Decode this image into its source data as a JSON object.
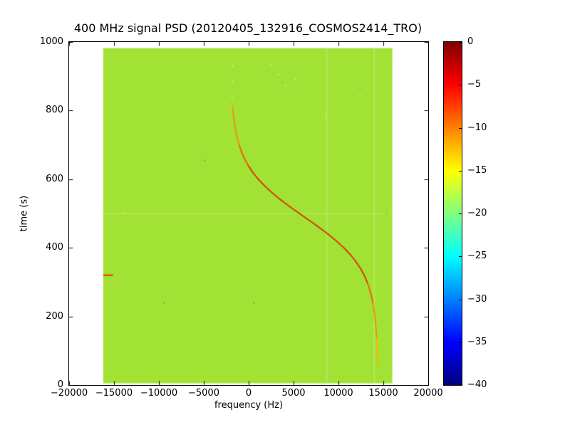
{
  "chart_data": {
    "type": "heatmap",
    "title": "400 MHz signal PSD (20120405_132916_COSMOS2414_TRO)",
    "xlabel": "frequency (Hz)",
    "ylabel": "time (s)",
    "xlim": [
      -20000,
      20000
    ],
    "ylim": [
      0,
      1000
    ],
    "grid": false,
    "x_ticks": {
      "values": [
        -20000,
        -15000,
        -10000,
        -5000,
        0,
        5000,
        10000,
        15000,
        20000
      ],
      "labels": [
        "−20000",
        "−15000",
        "−10000",
        "−5000",
        "0",
        "5000",
        "10000",
        "15000",
        "20000"
      ]
    },
    "y_ticks": {
      "values": [
        0,
        200,
        400,
        600,
        800,
        1000
      ],
      "labels": [
        "0",
        "200",
        "400",
        "600",
        "800",
        "1000"
      ]
    },
    "data_extent": {
      "freq": [
        -16200,
        16000
      ],
      "time": [
        5,
        982
      ]
    },
    "background_level_db": -17,
    "background_color": "#a2e235",
    "colorbar": {
      "range": [
        -40,
        0
      ],
      "colormap": "jet",
      "ticks": [
        {
          "value": 0,
          "label": "0"
        },
        {
          "value": -5,
          "label": "−5"
        },
        {
          "value": -10,
          "label": "−10"
        },
        {
          "value": -15,
          "label": "−15"
        },
        {
          "value": -20,
          "label": "−20"
        },
        {
          "value": -25,
          "label": "−25"
        },
        {
          "value": -30,
          "label": "−30"
        },
        {
          "value": -35,
          "label": "−35"
        },
        {
          "value": -40,
          "label": "−40"
        }
      ],
      "stops": [
        {
          "v": 0.0,
          "color": "#00007f"
        },
        {
          "v": 0.125,
          "color": "#0000ff"
        },
        {
          "v": 0.375,
          "color": "#00ffff"
        },
        {
          "v": 0.625,
          "color": "#ffff00"
        },
        {
          "v": 0.875,
          "color": "#ff0000"
        },
        {
          "v": 1.0,
          "color": "#7f0000"
        }
      ]
    },
    "doppler_track": {
      "description": "satellite Doppler S-curve, strong (near 0 dB) in center, fading toward ends",
      "line_width": 1.7,
      "points": [
        [
          60,
          14340
        ],
        [
          80,
          14330
        ],
        [
          100,
          14310
        ],
        [
          120,
          14280
        ],
        [
          140,
          14250
        ],
        [
          160,
          14200
        ],
        [
          180,
          14140
        ],
        [
          200,
          14060
        ],
        [
          220,
          13960
        ],
        [
          240,
          13840
        ],
        [
          260,
          13670
        ],
        [
          280,
          13460
        ],
        [
          300,
          13200
        ],
        [
          320,
          12870
        ],
        [
          340,
          12450
        ],
        [
          360,
          11940
        ],
        [
          380,
          11330
        ],
        [
          400,
          10600
        ],
        [
          420,
          9770
        ],
        [
          440,
          8840
        ],
        [
          460,
          7820
        ],
        [
          480,
          6750
        ],
        [
          500,
          5650
        ],
        [
          520,
          4580
        ],
        [
          540,
          3560
        ],
        [
          560,
          2630
        ],
        [
          580,
          1800
        ],
        [
          600,
          1070
        ],
        [
          620,
          460
        ],
        [
          640,
          -50
        ],
        [
          660,
          -470
        ],
        [
          680,
          -800
        ],
        [
          700,
          -1060
        ],
        [
          720,
          -1270
        ],
        [
          740,
          -1440
        ],
        [
          760,
          -1560
        ],
        [
          780,
          -1660
        ],
        [
          800,
          -1740
        ],
        [
          815,
          -1790
        ]
      ],
      "color_by_time": [
        {
          "t_max": 130,
          "color": "#ffb300"
        },
        {
          "t_max": 240,
          "color": "#ff8400"
        },
        {
          "t_max": 300,
          "color": "#f25500"
        },
        {
          "t_max": 640,
          "color": "#e02800"
        },
        {
          "t_max": 700,
          "color": "#f25500"
        },
        {
          "t_max": 790,
          "color": "#ff8400"
        },
        {
          "t_max": 1000,
          "color": "#ff9900"
        }
      ]
    },
    "artifacts": {
      "vertical_lines": [
        {
          "freq": 8700,
          "color": "#b7e75c"
        },
        {
          "freq": 14000,
          "color": "#b7e75c"
        }
      ],
      "horizontal_line": {
        "time": 500,
        "color": "#bce96c"
      },
      "red_dash": {
        "time": 320,
        "freq_range": [
          -16200,
          -15100
        ],
        "color": "#f04800"
      },
      "speckle_palette": {
        "dark": "#72a13e",
        "light": "#c9f284",
        "orange": "#ff8040"
      },
      "speckles": [
        [
          -9400,
          240,
          "dark"
        ],
        [
          600,
          240,
          "dark"
        ],
        [
          -4900,
          655,
          "dark"
        ],
        [
          3300,
          905,
          "light"
        ],
        [
          4100,
          872,
          "light"
        ],
        [
          2500,
          935,
          "light"
        ],
        [
          5200,
          890,
          "light"
        ],
        [
          12400,
          845,
          "light"
        ],
        [
          8600,
          780,
          "light"
        ],
        [
          -13800,
          500,
          "light"
        ],
        [
          15400,
          500,
          "orange"
        ],
        [
          -1850,
          840,
          "light"
        ],
        [
          -1800,
          885,
          "light"
        ],
        [
          -1740,
          930,
          "light"
        ]
      ]
    }
  }
}
